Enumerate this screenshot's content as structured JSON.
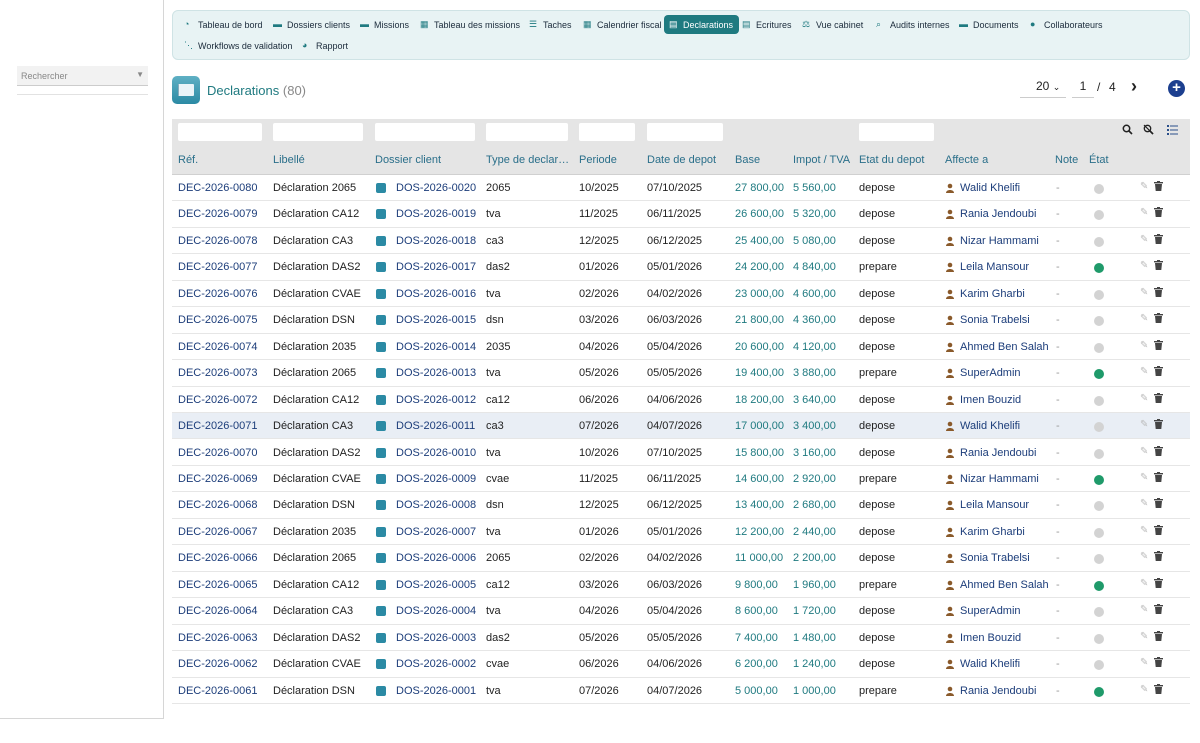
{
  "search": {
    "placeholder": "Rechercher"
  },
  "menu": [
    {
      "label": "Tableau de bord",
      "icon": "dashboard-icon"
    },
    {
      "label": "Dossiers clients",
      "icon": "folder-icon"
    },
    {
      "label": "Missions",
      "icon": "briefcase-icon"
    },
    {
      "label": "Tableau des missions",
      "icon": "table-icon"
    },
    {
      "label": "Taches",
      "icon": "list-icon"
    },
    {
      "label": "Calendrier fiscal",
      "icon": "calendar-icon"
    },
    {
      "label": "Declarations",
      "icon": "document-icon",
      "active": true
    },
    {
      "label": "Ecritures",
      "icon": "book-icon"
    },
    {
      "label": "Vue cabinet",
      "icon": "scale-icon"
    },
    {
      "label": "Audits internes",
      "icon": "search-icon"
    },
    {
      "label": "Documents",
      "icon": "folder-icon"
    },
    {
      "label": "Collaborateurs",
      "icon": "users-icon"
    },
    {
      "label": "Workflows de validation",
      "icon": "workflow-icon"
    },
    {
      "label": "Rapport",
      "icon": "chart-icon"
    }
  ],
  "header": {
    "title": "Declarations",
    "count": "(80)"
  },
  "pager": {
    "page_size": "20",
    "page": "1",
    "slash": "/",
    "total": "4",
    "next": "›",
    "add": "+"
  },
  "columns": [
    "Réf.",
    "Libellé",
    "Dossier client",
    "Type de declar…",
    "Periode",
    "Date de depot",
    "Base",
    "Impot / TVA",
    "Etat du depot",
    "Affecte a",
    "Note",
    "État"
  ],
  "rows": [
    {
      "ref": "DEC-2026-0080",
      "libelle": "Déclaration 2065",
      "dossier": "DOS-2026-0020",
      "type": "2065",
      "periode": "10/2025",
      "date": "07/10/2025",
      "base": "27 800,00",
      "impot": "5 560,00",
      "etat": "depose",
      "user": "Walid Khelifi",
      "note": "-",
      "status": "grey"
    },
    {
      "ref": "DEC-2026-0079",
      "libelle": "Déclaration CA12",
      "dossier": "DOS-2026-0019",
      "type": "tva",
      "periode": "11/2025",
      "date": "06/11/2025",
      "base": "26 600,00",
      "impot": "5 320,00",
      "etat": "depose",
      "user": "Rania Jendoubi",
      "note": "-",
      "status": "grey"
    },
    {
      "ref": "DEC-2026-0078",
      "libelle": "Déclaration CA3",
      "dossier": "DOS-2026-0018",
      "type": "ca3",
      "periode": "12/2025",
      "date": "06/12/2025",
      "base": "25 400,00",
      "impot": "5 080,00",
      "etat": "depose",
      "user": "Nizar Hammami",
      "note": "-",
      "status": "grey"
    },
    {
      "ref": "DEC-2026-0077",
      "libelle": "Déclaration DAS2",
      "dossier": "DOS-2026-0017",
      "type": "das2",
      "periode": "01/2026",
      "date": "05/01/2026",
      "base": "24 200,00",
      "impot": "4 840,00",
      "etat": "prepare",
      "user": "Leila Mansour",
      "note": "-",
      "status": "green"
    },
    {
      "ref": "DEC-2026-0076",
      "libelle": "Déclaration CVAE",
      "dossier": "DOS-2026-0016",
      "type": "tva",
      "periode": "02/2026",
      "date": "04/02/2026",
      "base": "23 000,00",
      "impot": "4 600,00",
      "etat": "depose",
      "user": "Karim Gharbi",
      "note": "-",
      "status": "grey"
    },
    {
      "ref": "DEC-2026-0075",
      "libelle": "Déclaration DSN",
      "dossier": "DOS-2026-0015",
      "type": "dsn",
      "periode": "03/2026",
      "date": "06/03/2026",
      "base": "21 800,00",
      "impot": "4 360,00",
      "etat": "depose",
      "user": "Sonia Trabelsi",
      "note": "-",
      "status": "grey"
    },
    {
      "ref": "DEC-2026-0074",
      "libelle": "Déclaration 2035",
      "dossier": "DOS-2026-0014",
      "type": "2035",
      "periode": "04/2026",
      "date": "05/04/2026",
      "base": "20 600,00",
      "impot": "4 120,00",
      "etat": "depose",
      "user": "Ahmed Ben Salah",
      "note": "-",
      "status": "grey"
    },
    {
      "ref": "DEC-2026-0073",
      "libelle": "Déclaration 2065",
      "dossier": "DOS-2026-0013",
      "type": "tva",
      "periode": "05/2026",
      "date": "05/05/2026",
      "base": "19 400,00",
      "impot": "3 880,00",
      "etat": "prepare",
      "user": "SuperAdmin",
      "note": "-",
      "status": "green"
    },
    {
      "ref": "DEC-2026-0072",
      "libelle": "Déclaration CA12",
      "dossier": "DOS-2026-0012",
      "type": "ca12",
      "periode": "06/2026",
      "date": "04/06/2026",
      "base": "18 200,00",
      "impot": "3 640,00",
      "etat": "depose",
      "user": "Imen Bouzid",
      "note": "-",
      "status": "grey"
    },
    {
      "ref": "DEC-2026-0071",
      "libelle": "Déclaration CA3",
      "dossier": "DOS-2026-0011",
      "type": "ca3",
      "periode": "07/2026",
      "date": "04/07/2026",
      "base": "17 000,00",
      "impot": "3 400,00",
      "etat": "depose",
      "user": "Walid Khelifi",
      "note": "-",
      "status": "grey",
      "highlight": true
    },
    {
      "ref": "DEC-2026-0070",
      "libelle": "Déclaration DAS2",
      "dossier": "DOS-2026-0010",
      "type": "tva",
      "periode": "10/2026",
      "date": "07/10/2025",
      "base": "15 800,00",
      "impot": "3 160,00",
      "etat": "depose",
      "user": "Rania Jendoubi",
      "note": "-",
      "status": "grey"
    },
    {
      "ref": "DEC-2026-0069",
      "libelle": "Déclaration CVAE",
      "dossier": "DOS-2026-0009",
      "type": "cvae",
      "periode": "11/2025",
      "date": "06/11/2025",
      "base": "14 600,00",
      "impot": "2 920,00",
      "etat": "prepare",
      "user": "Nizar Hammami",
      "note": "-",
      "status": "green"
    },
    {
      "ref": "DEC-2026-0068",
      "libelle": "Déclaration DSN",
      "dossier": "DOS-2026-0008",
      "type": "dsn",
      "periode": "12/2025",
      "date": "06/12/2025",
      "base": "13 400,00",
      "impot": "2 680,00",
      "etat": "depose",
      "user": "Leila Mansour",
      "note": "-",
      "status": "grey"
    },
    {
      "ref": "DEC-2026-0067",
      "libelle": "Déclaration 2035",
      "dossier": "DOS-2026-0007",
      "type": "tva",
      "periode": "01/2026",
      "date": "05/01/2026",
      "base": "12 200,00",
      "impot": "2 440,00",
      "etat": "depose",
      "user": "Karim Gharbi",
      "note": "-",
      "status": "grey"
    },
    {
      "ref": "DEC-2026-0066",
      "libelle": "Déclaration 2065",
      "dossier": "DOS-2026-0006",
      "type": "2065",
      "periode": "02/2026",
      "date": "04/02/2026",
      "base": "11 000,00",
      "impot": "2 200,00",
      "etat": "depose",
      "user": "Sonia Trabelsi",
      "note": "-",
      "status": "grey"
    },
    {
      "ref": "DEC-2026-0065",
      "libelle": "Déclaration CA12",
      "dossier": "DOS-2026-0005",
      "type": "ca12",
      "periode": "03/2026",
      "date": "06/03/2026",
      "base": "9 800,00",
      "impot": "1 960,00",
      "etat": "prepare",
      "user": "Ahmed Ben Salah",
      "note": "-",
      "status": "green"
    },
    {
      "ref": "DEC-2026-0064",
      "libelle": "Déclaration CA3",
      "dossier": "DOS-2026-0004",
      "type": "tva",
      "periode": "04/2026",
      "date": "05/04/2026",
      "base": "8 600,00",
      "impot": "1 720,00",
      "etat": "depose",
      "user": "SuperAdmin",
      "note": "-",
      "status": "grey"
    },
    {
      "ref": "DEC-2026-0063",
      "libelle": "Déclaration DAS2",
      "dossier": "DOS-2026-0003",
      "type": "das2",
      "periode": "05/2026",
      "date": "05/05/2026",
      "base": "7 400,00",
      "impot": "1 480,00",
      "etat": "depose",
      "user": "Imen Bouzid",
      "note": "-",
      "status": "grey"
    },
    {
      "ref": "DEC-2026-0062",
      "libelle": "Déclaration CVAE",
      "dossier": "DOS-2026-0002",
      "type": "cvae",
      "periode": "06/2026",
      "date": "04/06/2026",
      "base": "6 200,00",
      "impot": "1 240,00",
      "etat": "depose",
      "user": "Walid Khelifi",
      "note": "-",
      "status": "grey"
    },
    {
      "ref": "DEC-2026-0061",
      "libelle": "Déclaration DSN",
      "dossier": "DOS-2026-0001",
      "type": "tva",
      "periode": "07/2026",
      "date": "04/07/2026",
      "base": "5 000,00",
      "impot": "1 000,00",
      "etat": "prepare",
      "user": "Rania Jendoubi",
      "note": "-",
      "status": "green"
    }
  ],
  "colors": {
    "accent": "#1f7a80",
    "link": "#1c3d7a",
    "status_green": "#1f9a6a",
    "status_grey": "#d3d3d3",
    "add_button": "#1c3f8f"
  }
}
